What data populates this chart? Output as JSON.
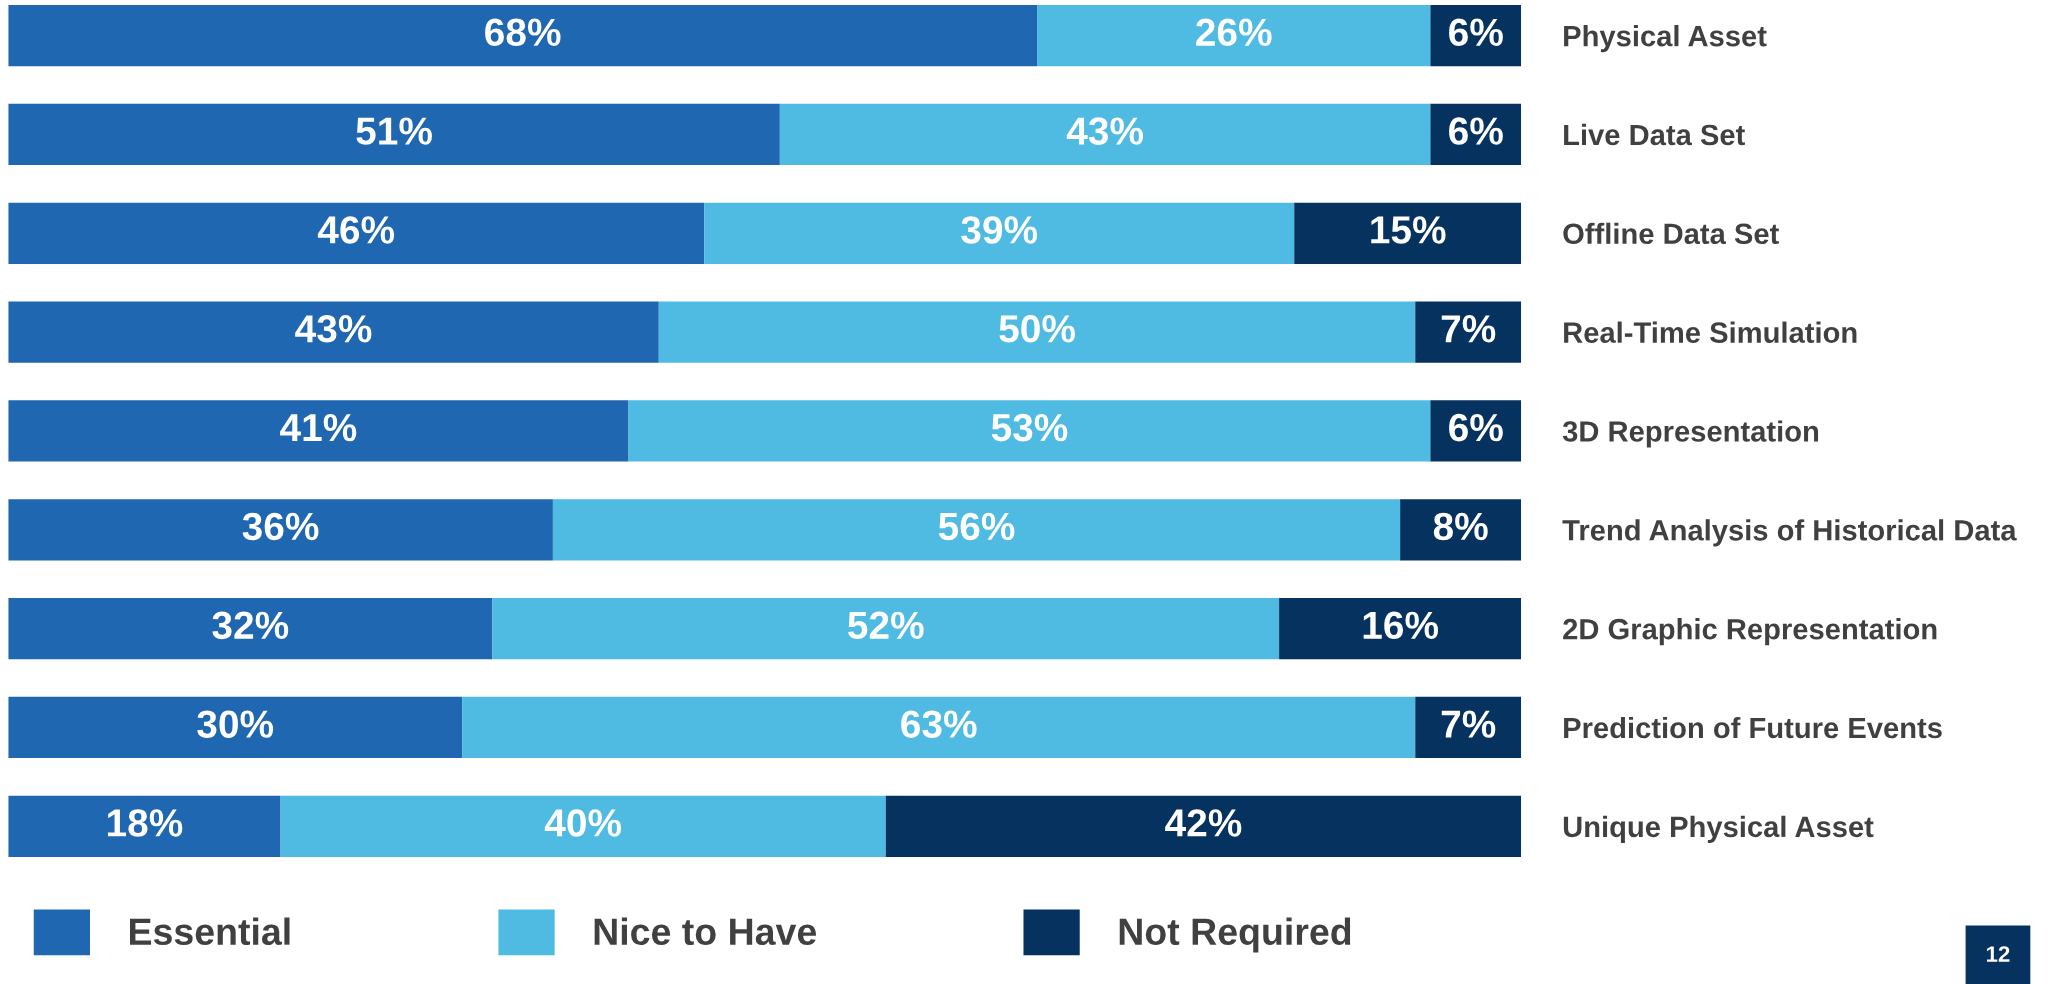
{
  "chart_data": {
    "type": "bar",
    "orientation": "horizontal",
    "stacked": true,
    "legend": "bottom left",
    "grid": false,
    "tick_labels": "y",
    "categories": [
      "Physical Asset",
      "Live Data Set",
      "Offline Data Set",
      "Real-Time Simulation",
      "3D Representation",
      "Trend Analysis of Historical Data",
      "2D Graphic Representation",
      "Prediction of Future Events",
      "Unique Physical Asset"
    ],
    "series": [
      {
        "name": "Essential",
        "color": "#1f67b1",
        "values": [
          68,
          51,
          46,
          43,
          41,
          36,
          32,
          30,
          18
        ],
        "value_labels": [
          "68%",
          "51%",
          "46%",
          "43%",
          "41%",
          "36%",
          "32%",
          "30%",
          "18%"
        ]
      },
      {
        "name": "Nice to Have",
        "color": "#4fbbe3",
        "values": [
          26,
          43,
          39,
          50,
          53,
          56,
          52,
          63,
          40
        ],
        "value_labels": [
          "26%",
          "43%",
          "39%",
          "50%",
          "53%",
          "56%",
          "52%",
          "63%",
          "40%"
        ]
      },
      {
        "name": "Not Required",
        "color": "#06325f",
        "values": [
          6,
          6,
          15,
          7,
          6,
          8,
          16,
          7,
          42
        ],
        "value_labels": [
          "6%",
          "6%",
          "15%",
          "7%",
          "6%",
          "8%",
          "16%",
          "7%",
          "42%"
        ]
      }
    ],
    "annotations": [
      "12"
    ]
  }
}
